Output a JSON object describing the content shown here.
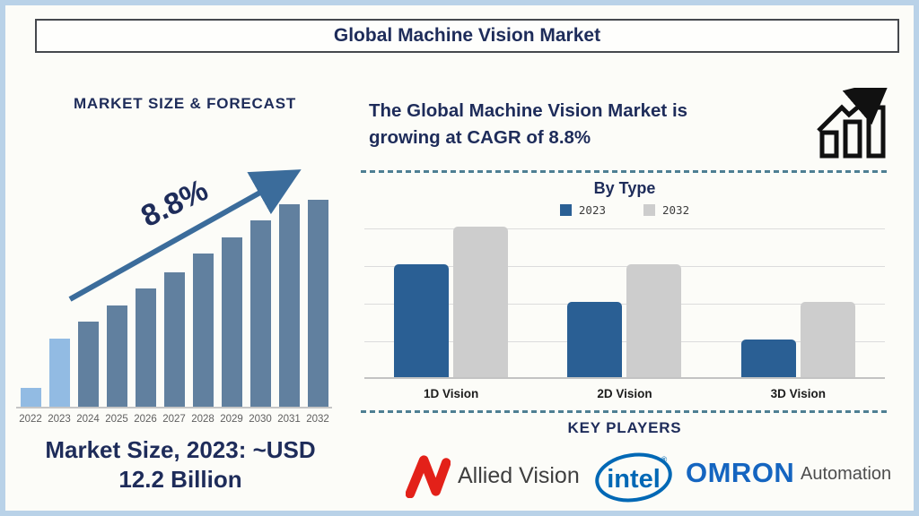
{
  "title": "Global Machine Vision Market",
  "left_panel": {
    "heading": "MARKET SIZE & FORECAST",
    "cagr_annotation": "8.8%",
    "caption_lines": [
      "Market Size, 2023: ~USD",
      "12.2 Billion"
    ]
  },
  "right_panel": {
    "headline_lines": [
      "The Global Machine Vision Market is",
      "growing at CAGR of 8.8%"
    ],
    "by_type_title": "By Type",
    "key_players_heading": "KEY PLAYERS",
    "logos": {
      "allied_vision": "Allied Vision",
      "intel": "intel",
      "intel_reg": "®",
      "omron": "OMRON",
      "omron_suffix": "Automation"
    }
  },
  "colors": {
    "navy_text": "#1e2c5a",
    "outer_border": "#b9d2e8",
    "dashed_divider": "#4e7f93",
    "forecast_bar": "#61809f",
    "forecast_bar_highlight": "#92bbe3",
    "arrow": "#3b6c9b",
    "bytype_2023": "#2a5f94",
    "bytype_2032": "#cdcdcd",
    "allied_red": "#e32119",
    "intel_blue": "#0068b5",
    "omron_blue": "#1565c0"
  },
  "chart_data": [
    {
      "type": "bar",
      "title": "MARKET SIZE & FORECAST",
      "x": [
        "2022",
        "2023",
        "2024",
        "2025",
        "2026",
        "2027",
        "2028",
        "2029",
        "2030",
        "2031",
        "2032"
      ],
      "values_relative": [
        9,
        33,
        41,
        49,
        57,
        65,
        74,
        82,
        90,
        98,
        100
      ],
      "units": "relative bar height, % of 2032 bar (axis unlabeled)",
      "known_value": "2023 = ~USD 12.2 Billion",
      "annotation": "8.8% CAGR arrow rising left-to-right",
      "bar_colors": {
        "default": "#61809f",
        "highlight": "#92bbe3",
        "highlight_years": [
          "2022",
          "2023"
        ]
      },
      "grid": "off",
      "legend": "none"
    },
    {
      "type": "bar",
      "title": "By Type",
      "categories": [
        "1D Vision",
        "2D Vision",
        "3D Vision"
      ],
      "series": [
        {
          "name": "2023",
          "color": "#2a5f94",
          "values": [
            3,
            2,
            1
          ]
        },
        {
          "name": "2032",
          "color": "#cdcdcd",
          "values": [
            4,
            3,
            2
          ]
        }
      ],
      "units": "gridline units (y-axis unlabeled, 4 equal gridlines)",
      "ylim": [
        0,
        4
      ],
      "grid": "on",
      "legend_position": "top-center"
    }
  ]
}
